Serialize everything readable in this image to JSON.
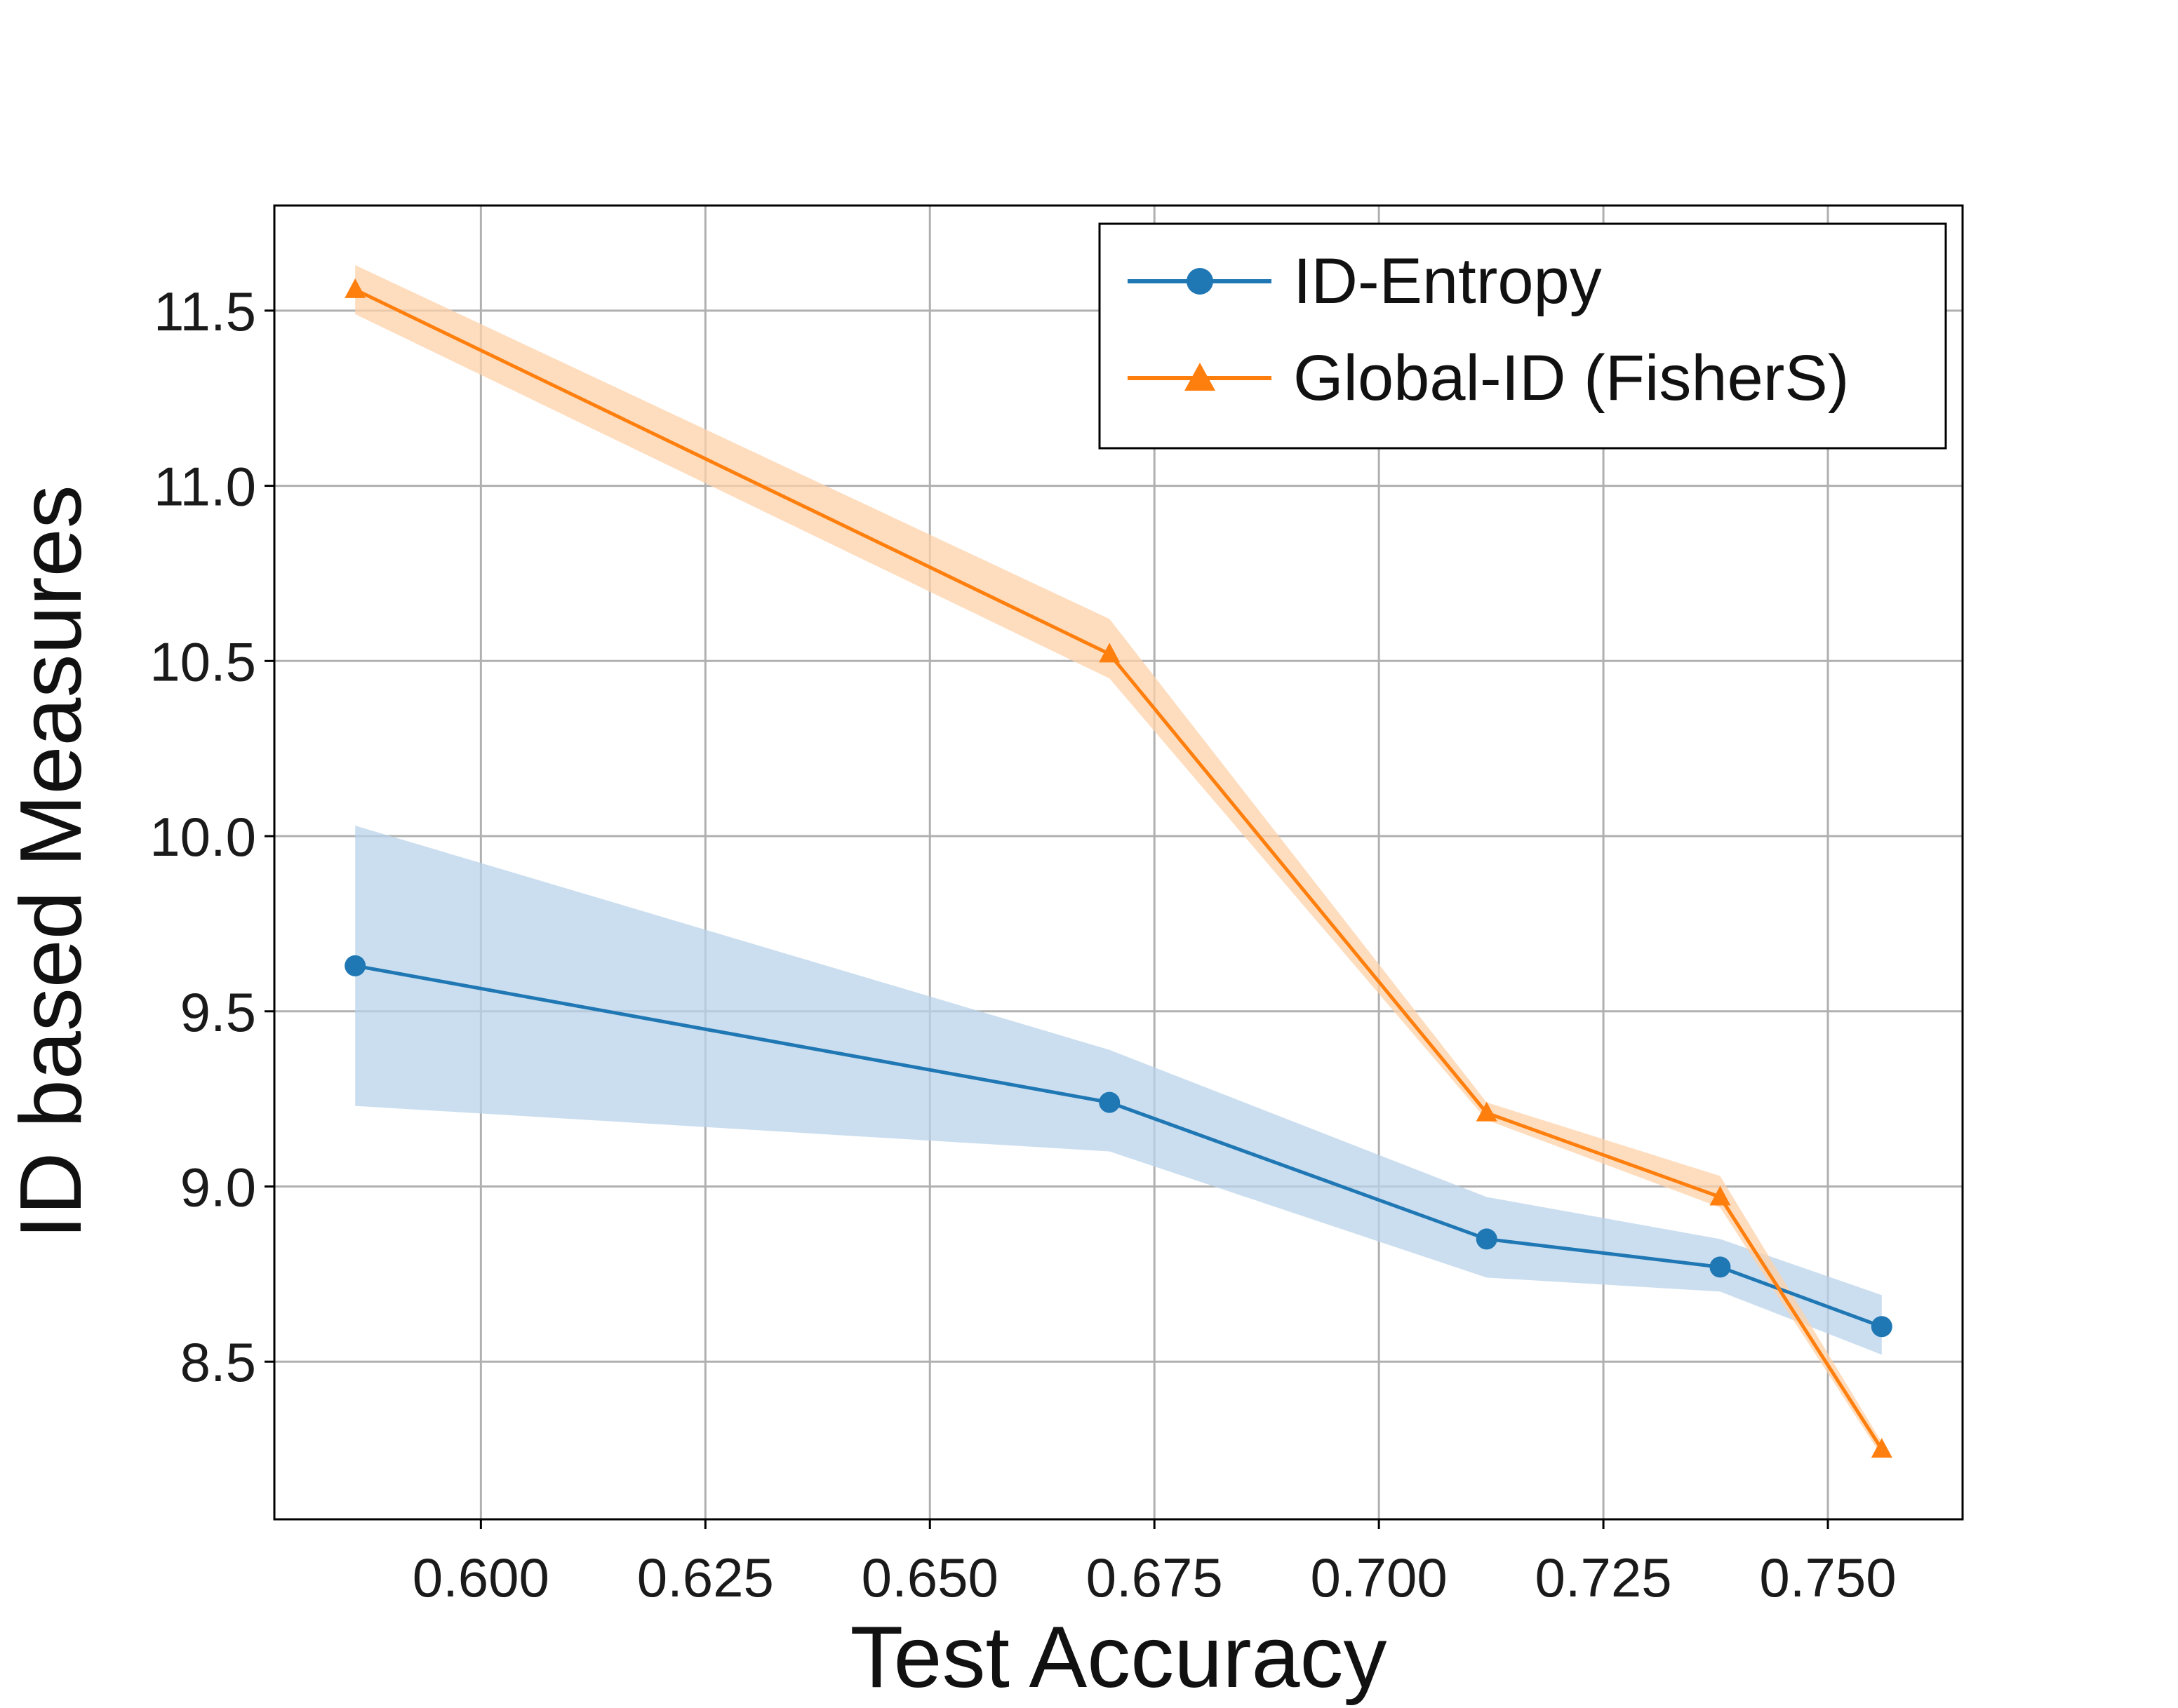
{
  "chart_data": {
    "type": "line",
    "title": "",
    "xlabel": "Test Accuracy",
    "ylabel": "ID based Measures",
    "xlim": [
      0.577,
      0.765
    ],
    "ylim": [
      8.05,
      11.8
    ],
    "xticks": [
      0.6,
      0.625,
      0.65,
      0.675,
      0.7,
      0.725,
      0.75
    ],
    "xtick_labels": [
      "0.600",
      "0.625",
      "0.650",
      "0.675",
      "0.700",
      "0.725",
      "0.750"
    ],
    "yticks": [
      8.5,
      9.0,
      9.5,
      10.0,
      10.5,
      11.0,
      11.5
    ],
    "ytick_labels": [
      "8.5",
      "9.0",
      "9.5",
      "10.0",
      "10.5",
      "11.0",
      "11.5"
    ],
    "grid": true,
    "legend_position": "top-right",
    "series": [
      {
        "name": "ID-Entropy",
        "color": "#1f77b4",
        "band_color": "#b9d3ea",
        "marker": "circle",
        "x": [
          0.586,
          0.67,
          0.712,
          0.738,
          0.756
        ],
        "y": [
          9.63,
          9.24,
          8.85,
          8.77,
          8.6
        ],
        "y_lower": [
          9.23,
          9.1,
          8.74,
          8.7,
          8.52
        ],
        "y_upper": [
          10.03,
          9.39,
          8.97,
          8.85,
          8.69
        ]
      },
      {
        "name": "Global-ID (FisherS)",
        "color": "#ff7f0e",
        "band_color": "#fdd2aa",
        "marker": "triangle",
        "x": [
          0.586,
          0.67,
          0.712,
          0.738,
          0.756
        ],
        "y": [
          11.56,
          10.52,
          9.21,
          8.97,
          8.25
        ],
        "y_lower": [
          11.49,
          10.45,
          9.19,
          8.94,
          8.23
        ],
        "y_upper": [
          11.63,
          10.62,
          9.24,
          9.03,
          8.27
        ]
      }
    ]
  }
}
